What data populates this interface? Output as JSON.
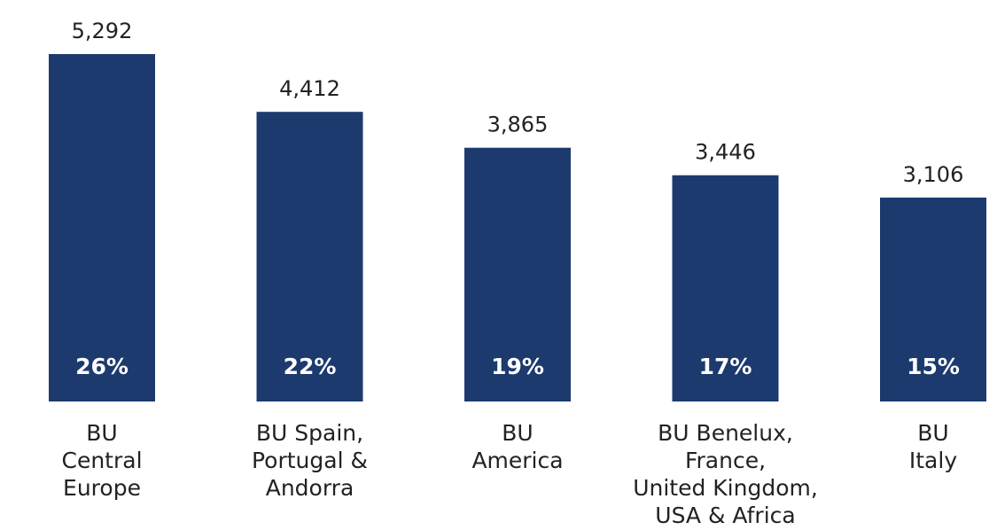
{
  "chart_data": {
    "type": "bar",
    "categories": [
      [
        "BU",
        "Central",
        "Europe"
      ],
      [
        "BU Spain,",
        "Portugal &",
        "Andorra"
      ],
      [
        "BU",
        "America"
      ],
      [
        "BU Benelux,",
        "France,",
        "United Kingdom,",
        "USA & Africa"
      ],
      [
        "BU",
        "Italy"
      ]
    ],
    "values": [
      5292,
      4412,
      3865,
      3446,
      3106
    ],
    "value_labels": [
      "5,292",
      "4,412",
      "3,865",
      "3,446",
      "3,106"
    ],
    "percent_values": [
      26,
      22,
      19,
      17,
      15
    ],
    "percent_labels": [
      "26%",
      "22%",
      "19%",
      "17%",
      "15%"
    ],
    "color": "#1d3a6e"
  }
}
